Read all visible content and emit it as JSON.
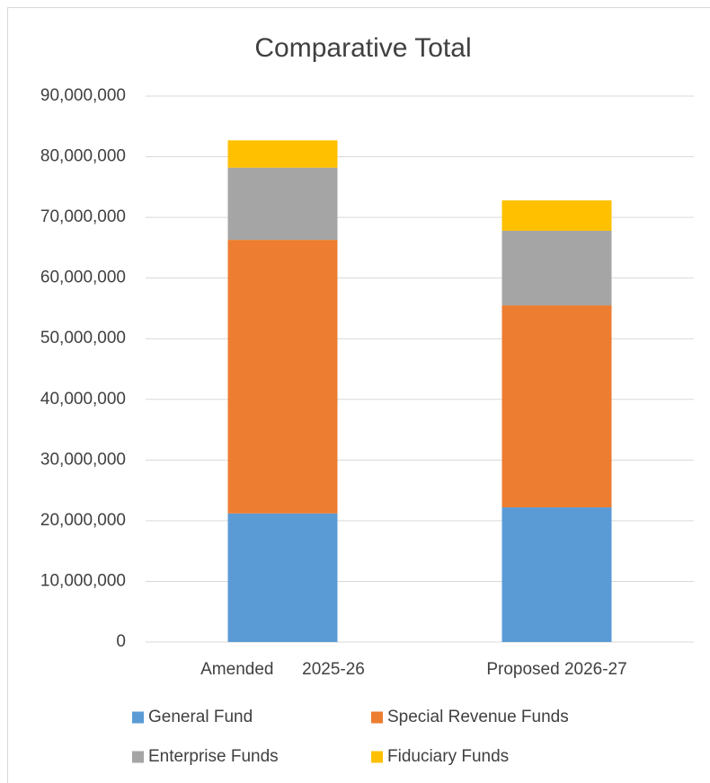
{
  "chart_data": {
    "type": "stacked_bar",
    "title": "Comparative Total",
    "categories": [
      "Amended      2025-26",
      "Proposed 2026-27"
    ],
    "series": [
      {
        "name": "General Fund",
        "color": "#5b9bd5",
        "values": [
          21200000,
          22200000
        ]
      },
      {
        "name": "Special Revenue Funds",
        "color": "#ed7d31",
        "values": [
          45100000,
          33300000
        ]
      },
      {
        "name": "Enterprise Funds",
        "color": "#a5a5a5",
        "values": [
          11900000,
          12300000
        ]
      },
      {
        "name": "Fiduciary Funds",
        "color": "#ffc000",
        "values": [
          4500000,
          5000000
        ]
      }
    ],
    "ylim": [
      0,
      90000000
    ],
    "yticks": [
      0,
      {
        "value": 10000000,
        "label": "10,000,000"
      },
      {
        "value": 20000000,
        "label": "20,000,000"
      },
      {
        "value": 30000000,
        "label": "30,000,000"
      },
      {
        "value": 40000000,
        "label": "40,000,000"
      },
      {
        "value": 50000000,
        "label": "50,000,000"
      },
      {
        "value": 60000000,
        "label": "60,000,000"
      },
      {
        "value": 70000000,
        "label": "70,000,000"
      },
      {
        "value": 80000000,
        "label": "80,000,000"
      },
      {
        "value": 90000000,
        "label": "90,000,000"
      }
    ],
    "grid": true,
    "legend": "bottom"
  }
}
